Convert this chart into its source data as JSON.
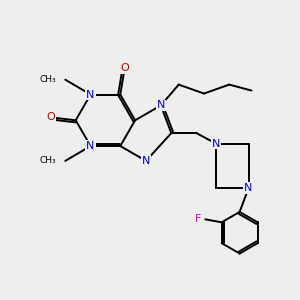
{
  "background_color": "#eeeeee",
  "bond_color": "#000000",
  "N_color": "#0000cc",
  "O_color": "#cc0000",
  "F_color": "#cc00aa",
  "line_width": 1.4,
  "figsize": [
    3.0,
    3.0
  ],
  "dpi": 100,
  "xlim": [
    0,
    10
  ],
  "ylim": [
    0,
    10
  ]
}
